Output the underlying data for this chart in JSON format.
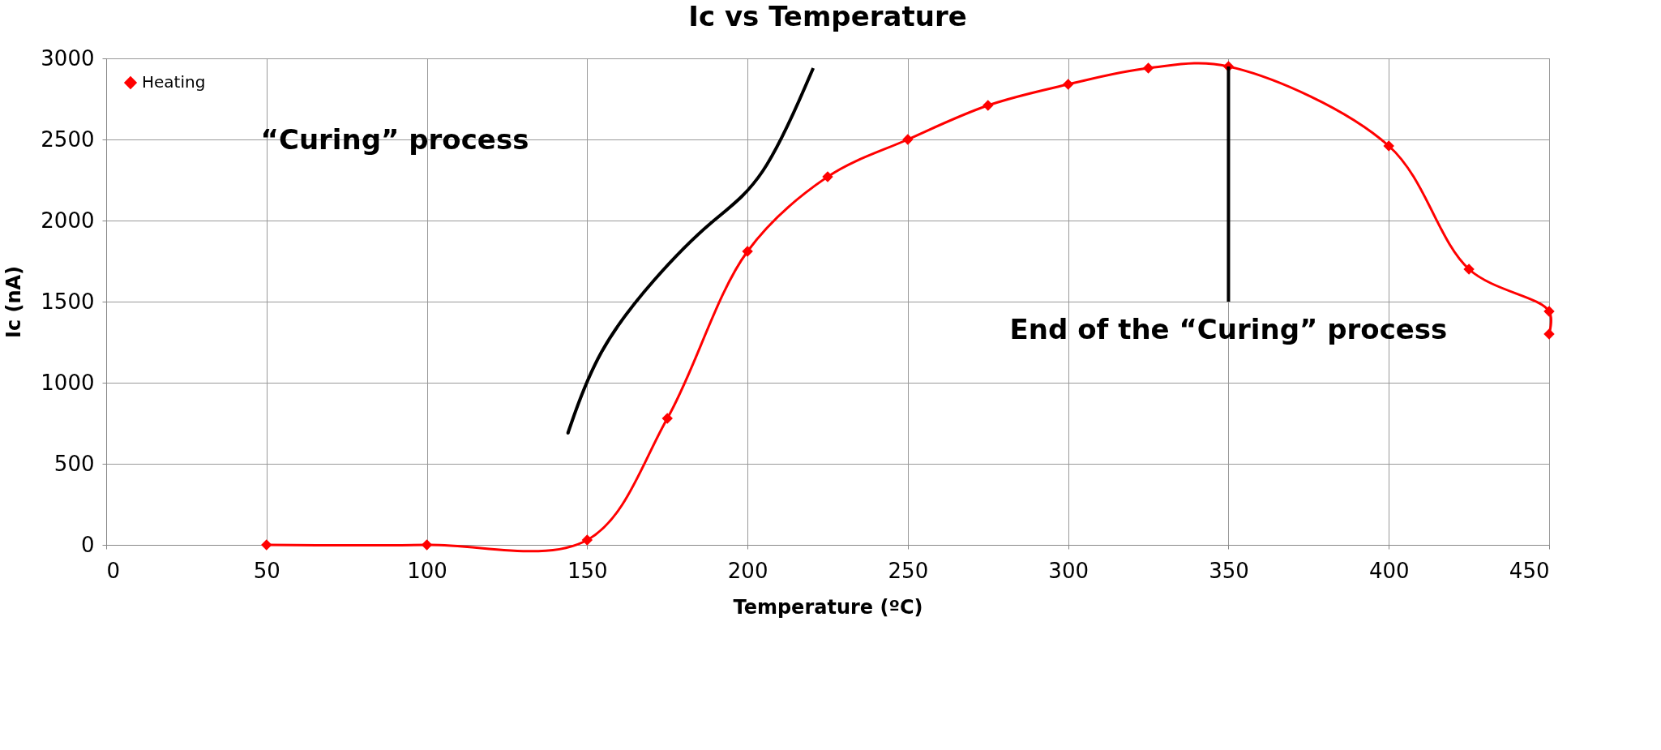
{
  "chart_data": {
    "type": "line",
    "title": "Ic vs Temperature",
    "xlabel": "Temperature (ºC)",
    "ylabel": "Ic (nA)",
    "x": [
      50,
      100,
      150,
      175,
      200,
      225,
      250,
      275,
      300,
      325,
      350,
      400,
      425,
      450,
      450
    ],
    "series": [
      {
        "name": "Heating",
        "color": "#ff0000",
        "values": [
          0,
          0,
          30,
          780,
          1810,
          2270,
          2500,
          2710,
          2840,
          2940,
          2950,
          2460,
          1700,
          1440,
          1300
        ]
      }
    ],
    "xlim": [
      0,
      450
    ],
    "xticks": [
      0,
      50,
      100,
      150,
      200,
      250,
      300,
      350,
      400,
      450
    ],
    "ylim": [
      0,
      3000
    ],
    "yticks": [
      0,
      500,
      1000,
      1500,
      2000,
      2500,
      3000
    ],
    "grid": true,
    "legend": "top left",
    "marker": "diamond",
    "line_style": "solid",
    "annotations": [
      "“Curing” process",
      {
        "text": "End of the “Curing” process",
        "x": 350,
        "y": 2950
      }
    ]
  }
}
